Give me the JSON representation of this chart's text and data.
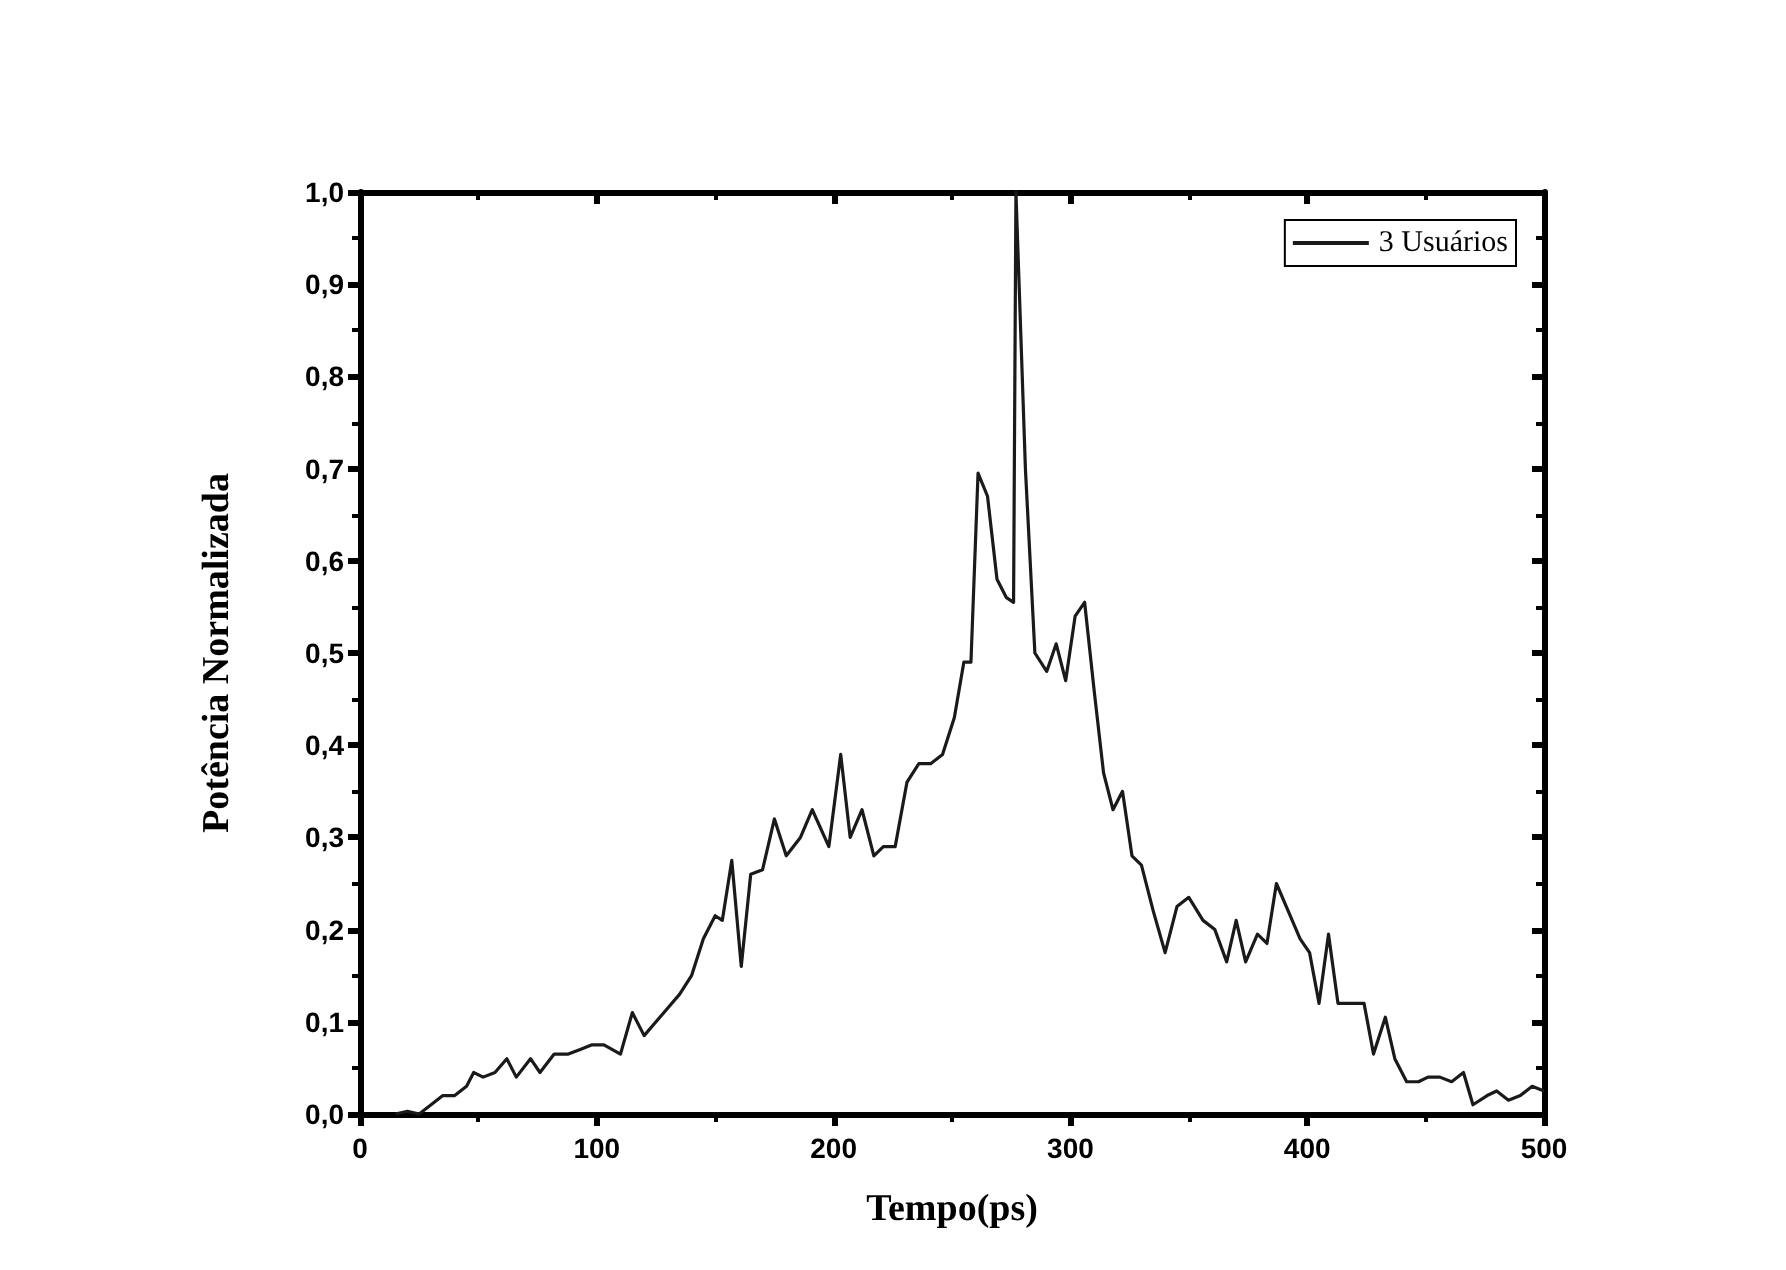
{
  "chart_data": {
    "type": "line",
    "xlabel": "Tempo(ps)",
    "ylabel": "Potência Normalizada",
    "xlim": [
      0,
      500
    ],
    "xticks": [
      0,
      100,
      200,
      300,
      400,
      500
    ],
    "ylim": [
      0,
      1
    ],
    "yticks": [
      {
        "value": 0,
        "label": "0,0"
      },
      {
        "value": 0.1,
        "label": "0,1"
      },
      {
        "value": 0.2,
        "label": "0,2"
      },
      {
        "value": 0.3,
        "label": "0,3"
      },
      {
        "value": 0.4,
        "label": "0,4"
      },
      {
        "value": 0.5,
        "label": "0,5"
      },
      {
        "value": 0.6,
        "label": "0,6"
      },
      {
        "value": 0.7,
        "label": "0,7"
      },
      {
        "value": 0.8,
        "label": "0,8"
      },
      {
        "value": 0.9,
        "label": "0,9"
      },
      {
        "value": 1,
        "label": "1,0"
      }
    ],
    "grid": false,
    "legend": "top right",
    "marker": "none",
    "line_style": "solid",
    "series": [
      {
        "name": "3 Usuários",
        "color": "#1a1a1a",
        "x": [
          15,
          20,
          25,
          30,
          35,
          40,
          45,
          48,
          52,
          57,
          62,
          66,
          72,
          76,
          82,
          88,
          93,
          98,
          103,
          110,
          115,
          120,
          125,
          130,
          135,
          140,
          145,
          150,
          153,
          157,
          161,
          165,
          170,
          175,
          180,
          186,
          191,
          198,
          203,
          207,
          212,
          217,
          221,
          226,
          231,
          236,
          241,
          246,
          251,
          255,
          258,
          261,
          265,
          269,
          273,
          276,
          277,
          281,
          285,
          290,
          294,
          298,
          302,
          306,
          310,
          314,
          318,
          322,
          326,
          330,
          335,
          340,
          345,
          350,
          356,
          361,
          366,
          370,
          374,
          379,
          383,
          387,
          392,
          397,
          401,
          405,
          409,
          413,
          418,
          424,
          428,
          433,
          437,
          442,
          447,
          451,
          456,
          461,
          466,
          470,
          476,
          480,
          485,
          490,
          495,
          500
        ],
        "values": [
          0,
          0.003,
          0,
          0.01,
          0.02,
          0.02,
          0.03,
          0.045,
          0.04,
          0.045,
          0.06,
          0.04,
          0.06,
          0.045,
          0.065,
          0.065,
          0.07,
          0.075,
          0.075,
          0.065,
          0.11,
          0.085,
          0.1,
          0.115,
          0.13,
          0.15,
          0.19,
          0.215,
          0.21,
          0.275,
          0.16,
          0.26,
          0.265,
          0.32,
          0.28,
          0.3,
          0.33,
          0.29,
          0.39,
          0.3,
          0.33,
          0.28,
          0.29,
          0.29,
          0.36,
          0.38,
          0.38,
          0.39,
          0.43,
          0.49,
          0.49,
          0.695,
          0.67,
          0.58,
          0.56,
          0.555,
          1.0,
          0.7,
          0.5,
          0.48,
          0.51,
          0.47,
          0.54,
          0.555,
          0.46,
          0.37,
          0.33,
          0.35,
          0.28,
          0.27,
          0.22,
          0.175,
          0.225,
          0.235,
          0.21,
          0.2,
          0.165,
          0.21,
          0.165,
          0.195,
          0.185,
          0.25,
          0.22,
          0.19,
          0.175,
          0.12,
          0.195,
          0.12,
          0.12,
          0.12,
          0.065,
          0.105,
          0.06,
          0.035,
          0.035,
          0.04,
          0.04,
          0.035,
          0.045,
          0.01,
          0.02,
          0.025,
          0.015,
          0.02,
          0.03,
          0.025
        ]
      }
    ]
  }
}
